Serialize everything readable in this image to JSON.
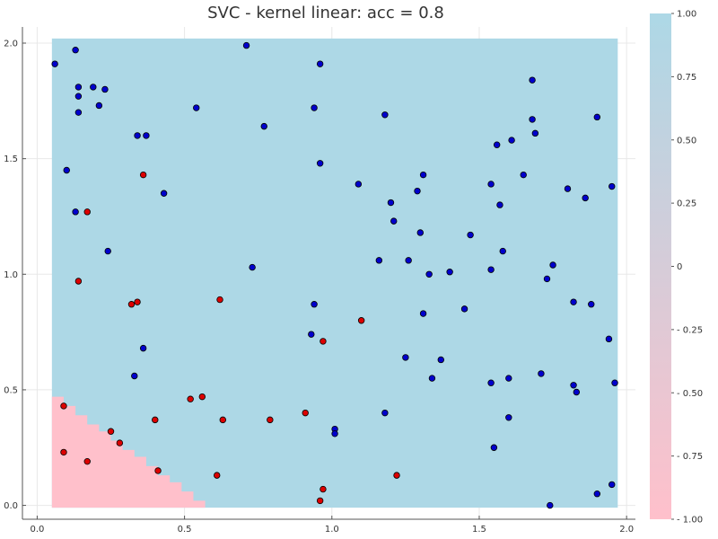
{
  "chart_data": {
    "type": "scatter",
    "title": "SVC - kernel linear: acc = 0.8",
    "xlabel": "",
    "ylabel": "",
    "xlim": [
      -0.05,
      2.03
    ],
    "ylim": [
      -0.06,
      2.07
    ],
    "x_ticks": [
      0.0,
      0.5,
      1.0,
      1.5,
      2.0
    ],
    "x_tick_labels": [
      "0.0",
      "0.5",
      "1.0",
      "1.5",
      "2.0"
    ],
    "y_ticks": [
      0.0,
      0.5,
      1.0,
      1.5,
      2.0
    ],
    "y_tick_labels": [
      "0.0",
      "0.5",
      "1.0",
      "1.5",
      "2.0"
    ],
    "grid": true,
    "colorbar": {
      "min": -1.0,
      "max": 1.0,
      "ticks": [
        1.0,
        0.75,
        0.5,
        0.25,
        0.0,
        -0.25,
        -0.5,
        -0.75,
        -1.0
      ],
      "tick_labels": [
        "1.00",
        "0.75",
        "0.50",
        "0.25",
        "0",
        "- 0.25",
        "- 0.50",
        "- 0.75",
        "- 1.00"
      ],
      "color_high": "#add8e6",
      "color_low": "#ffc0cb"
    },
    "decision_region": {
      "x_range": [
        0.05,
        1.97
      ],
      "y_range": [
        -0.01,
        2.02
      ],
      "negative_color": "#ffc0cb",
      "positive_color": "#add8e6",
      "negative_boundary": [
        [
          0.05,
          0.47
        ],
        [
          0.09,
          0.47
        ],
        [
          0.09,
          0.43
        ],
        [
          0.13,
          0.43
        ],
        [
          0.13,
          0.39
        ],
        [
          0.17,
          0.39
        ],
        [
          0.17,
          0.35
        ],
        [
          0.21,
          0.35
        ],
        [
          0.21,
          0.32
        ],
        [
          0.25,
          0.32
        ],
        [
          0.25,
          0.28
        ],
        [
          0.29,
          0.28
        ],
        [
          0.29,
          0.24
        ],
        [
          0.33,
          0.24
        ],
        [
          0.33,
          0.21
        ],
        [
          0.37,
          0.21
        ],
        [
          0.37,
          0.17
        ],
        [
          0.41,
          0.17
        ],
        [
          0.41,
          0.13
        ],
        [
          0.45,
          0.13
        ],
        [
          0.45,
          0.1
        ],
        [
          0.49,
          0.1
        ],
        [
          0.49,
          0.06
        ],
        [
          0.53,
          0.06
        ],
        [
          0.53,
          0.02
        ],
        [
          0.57,
          0.02
        ],
        [
          0.57,
          -0.01
        ],
        [
          0.05,
          -0.01
        ]
      ]
    },
    "series": [
      {
        "class": 1,
        "color": "#0000cd",
        "x": [
          0.06,
          0.13,
          0.71,
          0.96,
          0.14,
          0.19,
          0.23,
          0.14,
          0.21,
          0.14,
          0.54,
          0.94,
          1.18,
          0.77,
          0.34,
          0.37,
          0.1,
          0.43,
          0.13,
          0.24,
          0.73,
          0.96,
          1.09,
          1.2,
          1.21,
          1.31,
          1.3,
          1.29,
          1.26,
          1.16,
          1.33,
          1.4,
          1.31,
          1.45,
          1.47,
          1.54,
          1.56,
          1.57,
          1.58,
          1.61,
          1.65,
          1.68,
          1.68,
          1.69,
          1.8,
          1.86,
          1.9,
          1.95,
          1.73,
          1.75,
          1.82,
          1.88,
          1.54,
          1.94,
          0.94,
          0.93,
          0.36,
          0.33,
          1.25,
          1.37,
          1.34,
          1.54,
          1.6,
          1.71,
          1.82,
          1.83,
          1.96,
          1.18,
          1.6,
          1.55,
          1.01,
          1.01,
          1.74,
          1.9,
          1.95
        ],
        "y": [
          1.91,
          1.97,
          1.99,
          1.91,
          1.81,
          1.81,
          1.8,
          1.77,
          1.73,
          1.7,
          1.72,
          1.72,
          1.69,
          1.64,
          1.6,
          1.6,
          1.45,
          1.35,
          1.27,
          1.1,
          1.03,
          1.48,
          1.39,
          1.31,
          1.23,
          1.43,
          1.18,
          1.36,
          1.06,
          1.06,
          1.0,
          1.01,
          0.83,
          0.85,
          1.17,
          1.39,
          1.56,
          1.3,
          1.1,
          1.58,
          1.43,
          1.84,
          1.67,
          1.61,
          1.37,
          1.33,
          1.68,
          1.38,
          0.98,
          1.04,
          0.88,
          0.87,
          1.02,
          0.72,
          0.87,
          0.74,
          0.68,
          0.56,
          0.64,
          0.63,
          0.55,
          0.53,
          0.55,
          0.57,
          0.52,
          0.49,
          0.53,
          0.4,
          0.38,
          0.25,
          0.33,
          0.31,
          0.0,
          0.05,
          0.09
        ]
      },
      {
        "class": -1,
        "color": "#dd0000",
        "x": [
          0.36,
          0.17,
          0.14,
          0.32,
          0.34,
          0.62,
          1.1,
          0.97,
          0.09,
          0.52,
          0.56,
          0.4,
          0.63,
          0.79,
          0.91,
          0.25,
          0.28,
          0.09,
          0.17,
          0.41,
          0.61,
          1.22,
          0.97,
          0.96
        ],
        "y": [
          1.43,
          1.27,
          0.97,
          0.87,
          0.88,
          0.89,
          0.8,
          0.71,
          0.43,
          0.46,
          0.47,
          0.37,
          0.37,
          0.37,
          0.4,
          0.32,
          0.27,
          0.23,
          0.19,
          0.15,
          0.13,
          0.13,
          0.07,
          0.02
        ]
      }
    ]
  },
  "colors": {
    "positive_region": "#add8e6",
    "negative_region": "#ffc0cb",
    "class_positive_marker": "#0000cd",
    "class_negative_marker": "#dd0000",
    "grid": "#e8e8e8",
    "axis": "#555555"
  }
}
